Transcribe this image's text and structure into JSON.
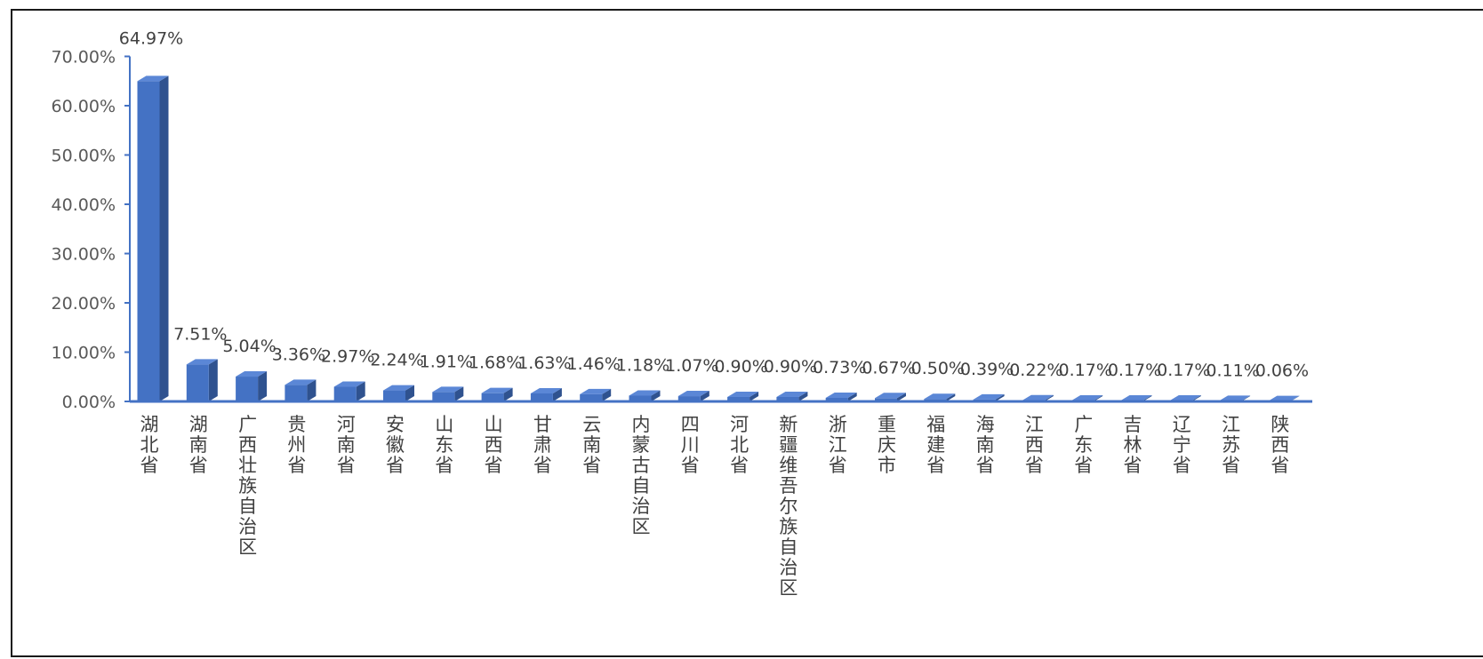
{
  "chart_data": {
    "type": "bar",
    "style": "3d-column",
    "categories": [
      "湖北省",
      "湖南省",
      "广西壮族自治区",
      "贵州省",
      "河南省",
      "安徽省",
      "山东省",
      "山西省",
      "甘肃省",
      "云南省",
      "内蒙古自治区",
      "四川省",
      "河北省",
      "新疆维吾尔族自治区",
      "浙江省",
      "重庆市",
      "福建省",
      "海南省",
      "江西省",
      "广东省",
      "吉林省",
      "辽宁省",
      "江苏省",
      "陕西省"
    ],
    "values": [
      64.97,
      7.51,
      5.04,
      3.36,
      2.97,
      2.24,
      1.91,
      1.68,
      1.63,
      1.46,
      1.18,
      1.07,
      0.9,
      0.9,
      0.73,
      0.67,
      0.5,
      0.39,
      0.22,
      0.17,
      0.17,
      0.17,
      0.11,
      0.06
    ],
    "data_labels": [
      "64.97%",
      "7.51%",
      "5.04%",
      "3.36%",
      "2.97%",
      "2.24%",
      "1.91%",
      "1.68%",
      "1.63%",
      "1.46%",
      "1.18%",
      "1.07%",
      "0.90%",
      "0.90%",
      "0.73%",
      "0.67%",
      "0.50%",
      "0.39%",
      "0.22%",
      "0.17%",
      "0.17%",
      "0.17%",
      "0.11%",
      "0.06%"
    ],
    "yticks": [
      "0.00%",
      "10.00%",
      "20.00%",
      "30.00%",
      "40.00%",
      "50.00%",
      "60.00%",
      "70.00%"
    ],
    "ylim": [
      0,
      70
    ],
    "title": "",
    "xlabel": "",
    "ylabel": "",
    "grid": false,
    "legend": "none",
    "colors": {
      "bar_front": "#4472C4",
      "bar_side": "#2F528F",
      "bar_top": "#5B87D6",
      "axis": "#4472C4",
      "tick_text": "#595959",
      "label_text": "#404040"
    }
  }
}
